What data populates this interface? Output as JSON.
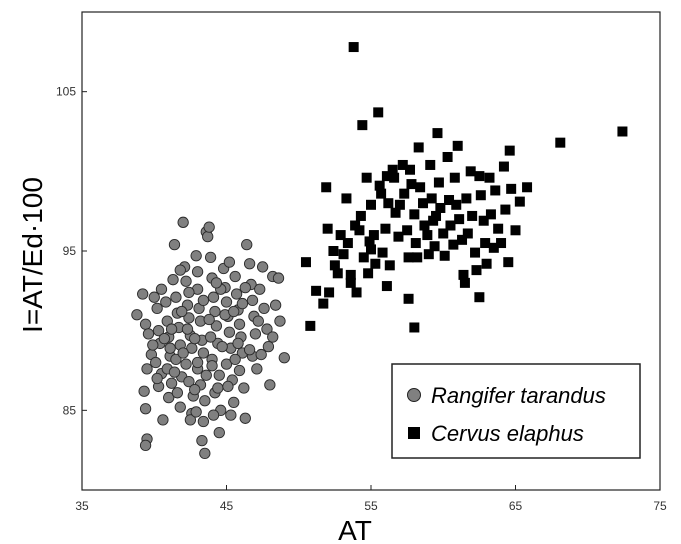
{
  "chart_data": {
    "type": "scatter",
    "xlabel": "AT",
    "ylabel": "I=AT/Ed·100",
    "xlim": [
      35,
      75
    ],
    "ylim": [
      80,
      110
    ],
    "xticks": [
      "35",
      "45",
      "55",
      "65",
      "75"
    ],
    "yticks": [
      "85",
      "95",
      "105"
    ],
    "grid": false,
    "legend_position": "bottom-right",
    "series": [
      {
        "name": "Rangifer tarandus",
        "marker": "circle",
        "color": "#808080",
        "points": [
          [
            38.8,
            91.0
          ],
          [
            39.2,
            92.3
          ],
          [
            39.4,
            90.4
          ],
          [
            39.6,
            89.8
          ],
          [
            39.8,
            88.5
          ],
          [
            39.5,
            87.6
          ],
          [
            39.3,
            86.2
          ],
          [
            39.4,
            85.1
          ],
          [
            39.5,
            83.2
          ],
          [
            39.4,
            82.8
          ],
          [
            40.0,
            92.1
          ],
          [
            40.2,
            91.4
          ],
          [
            40.3,
            90.0
          ],
          [
            40.4,
            89.2
          ],
          [
            40.1,
            88.0
          ],
          [
            40.5,
            87.3
          ],
          [
            40.3,
            86.5
          ],
          [
            40.6,
            84.4
          ],
          [
            40.5,
            92.6
          ],
          [
            40.8,
            91.8
          ],
          [
            40.9,
            90.6
          ],
          [
            41.0,
            89.6
          ],
          [
            41.1,
            88.4
          ],
          [
            40.9,
            87.6
          ],
          [
            41.2,
            86.7
          ],
          [
            41.0,
            85.8
          ],
          [
            41.3,
            93.2
          ],
          [
            41.4,
            95.4
          ],
          [
            41.5,
            92.1
          ],
          [
            41.6,
            91.1
          ],
          [
            41.7,
            90.2
          ],
          [
            41.8,
            89.1
          ],
          [
            41.5,
            88.2
          ],
          [
            41.9,
            87.1
          ],
          [
            41.6,
            86.1
          ],
          [
            41.8,
            85.2
          ],
          [
            42.0,
            96.8
          ],
          [
            42.1,
            94.0
          ],
          [
            42.2,
            93.1
          ],
          [
            42.3,
            91.6
          ],
          [
            42.4,
            90.8
          ],
          [
            42.5,
            89.7
          ],
          [
            42.6,
            88.9
          ],
          [
            42.2,
            87.9
          ],
          [
            42.4,
            86.8
          ],
          [
            42.7,
            85.9
          ],
          [
            42.6,
            84.8
          ],
          [
            42.5,
            84.4
          ],
          [
            42.9,
            94.7
          ],
          [
            43.0,
            92.6
          ],
          [
            43.1,
            91.4
          ],
          [
            43.2,
            90.6
          ],
          [
            43.3,
            89.4
          ],
          [
            43.4,
            88.6
          ],
          [
            43.0,
            87.6
          ],
          [
            43.2,
            86.6
          ],
          [
            43.5,
            85.6
          ],
          [
            43.4,
            84.3
          ],
          [
            43.3,
            83.1
          ],
          [
            43.5,
            82.3
          ],
          [
            43.6,
            96.2
          ],
          [
            43.7,
            95.9
          ],
          [
            43.8,
            96.5
          ],
          [
            43.9,
            94.6
          ],
          [
            44.0,
            93.3
          ],
          [
            44.1,
            92.1
          ],
          [
            44.2,
            91.2
          ],
          [
            44.3,
            90.3
          ],
          [
            44.4,
            89.2
          ],
          [
            44.0,
            88.2
          ],
          [
            44.5,
            87.2
          ],
          [
            44.2,
            86.1
          ],
          [
            44.6,
            85.0
          ],
          [
            44.1,
            84.7
          ],
          [
            44.8,
            93.9
          ],
          [
            44.9,
            92.7
          ],
          [
            45.0,
            91.8
          ],
          [
            45.1,
            90.9
          ],
          [
            45.2,
            89.9
          ],
          [
            45.3,
            88.9
          ],
          [
            45.0,
            87.9
          ],
          [
            45.4,
            86.9
          ],
          [
            45.5,
            85.5
          ],
          [
            45.3,
            84.7
          ],
          [
            45.6,
            93.4
          ],
          [
            45.7,
            92.3
          ],
          [
            45.8,
            91.3
          ],
          [
            45.9,
            90.4
          ],
          [
            46.0,
            89.6
          ],
          [
            46.1,
            88.6
          ],
          [
            45.9,
            87.5
          ],
          [
            46.2,
            86.4
          ],
          [
            46.3,
            84.5
          ],
          [
            46.4,
            95.4
          ],
          [
            46.6,
            94.2
          ],
          [
            46.7,
            92.9
          ],
          [
            46.8,
            91.9
          ],
          [
            46.9,
            90.9
          ],
          [
            47.0,
            89.8
          ],
          [
            46.8,
            88.4
          ],
          [
            47.1,
            87.6
          ],
          [
            47.3,
            92.6
          ],
          [
            47.5,
            94.0
          ],
          [
            47.6,
            91.4
          ],
          [
            47.8,
            90.1
          ],
          [
            47.9,
            89.0
          ],
          [
            48.0,
            86.6
          ],
          [
            48.2,
            93.4
          ],
          [
            48.4,
            91.6
          ],
          [
            48.6,
            93.3
          ],
          [
            48.7,
            90.6
          ],
          [
            49.0,
            88.3
          ],
          [
            41.2,
            90.1
          ],
          [
            42.8,
            89.5
          ],
          [
            43.8,
            90.7
          ],
          [
            44.7,
            89.0
          ],
          [
            45.6,
            88.2
          ],
          [
            42.0,
            88.6
          ],
          [
            43.6,
            87.2
          ],
          [
            44.4,
            86.4
          ],
          [
            45.1,
            86.5
          ],
          [
            41.4,
            87.4
          ],
          [
            40.7,
            89.5
          ],
          [
            42.4,
            92.4
          ],
          [
            44.6,
            92.6
          ],
          [
            46.3,
            92.7
          ],
          [
            47.2,
            90.6
          ],
          [
            43.0,
            93.7
          ],
          [
            45.2,
            94.3
          ],
          [
            41.9,
            91.2
          ],
          [
            44.0,
            87.8
          ],
          [
            45.8,
            89.2
          ],
          [
            42.8,
            86.3
          ],
          [
            43.4,
            91.9
          ],
          [
            46.6,
            88.8
          ],
          [
            40.2,
            87.0
          ],
          [
            41.8,
            93.8
          ],
          [
            44.9,
            91.0
          ],
          [
            43.0,
            88.0
          ],
          [
            42.3,
            90.1
          ],
          [
            47.4,
            88.5
          ],
          [
            45.5,
            91.2
          ],
          [
            44.3,
            93.0
          ],
          [
            41.1,
            88.9
          ],
          [
            42.9,
            84.9
          ],
          [
            46.1,
            91.7
          ],
          [
            43.9,
            89.6
          ],
          [
            48.2,
            89.6
          ],
          [
            39.9,
            89.1
          ],
          [
            44.5,
            83.6
          ]
        ]
      },
      {
        "name": "Cervus elaphus",
        "marker": "square",
        "color": "#000000",
        "points": [
          [
            50.5,
            94.3
          ],
          [
            50.8,
            90.3
          ],
          [
            51.2,
            92.5
          ],
          [
            51.7,
            91.7
          ],
          [
            51.9,
            99.0
          ],
          [
            52.0,
            96.4
          ],
          [
            52.1,
            92.4
          ],
          [
            52.4,
            95.0
          ],
          [
            52.5,
            94.1
          ],
          [
            52.7,
            93.6
          ],
          [
            52.9,
            96.0
          ],
          [
            53.1,
            94.8
          ],
          [
            53.3,
            98.3
          ],
          [
            53.4,
            95.5
          ],
          [
            53.6,
            93.5
          ],
          [
            53.8,
            107.8
          ],
          [
            53.9,
            96.6
          ],
          [
            54.0,
            92.4
          ],
          [
            54.2,
            96.3
          ],
          [
            54.3,
            97.2
          ],
          [
            54.4,
            102.9
          ],
          [
            54.5,
            94.6
          ],
          [
            54.7,
            99.6
          ],
          [
            54.8,
            93.6
          ],
          [
            54.9,
            95.6
          ],
          [
            55.0,
            97.9
          ],
          [
            55.2,
            96.0
          ],
          [
            55.3,
            94.2
          ],
          [
            55.5,
            103.7
          ],
          [
            55.6,
            99.1
          ],
          [
            55.7,
            98.6
          ],
          [
            55.8,
            94.9
          ],
          [
            56.0,
            96.4
          ],
          [
            56.1,
            99.7
          ],
          [
            56.2,
            98.0
          ],
          [
            56.3,
            94.1
          ],
          [
            56.5,
            100.1
          ],
          [
            56.6,
            99.6
          ],
          [
            56.7,
            97.4
          ],
          [
            56.9,
            95.9
          ],
          [
            57.0,
            97.9
          ],
          [
            57.2,
            100.4
          ],
          [
            57.3,
            98.6
          ],
          [
            57.5,
            96.3
          ],
          [
            57.6,
            94.6
          ],
          [
            57.7,
            100.1
          ],
          [
            57.8,
            99.2
          ],
          [
            58.0,
            97.3
          ],
          [
            58.1,
            95.5
          ],
          [
            58.2,
            94.6
          ],
          [
            58.3,
            101.5
          ],
          [
            58.4,
            99.0
          ],
          [
            58.6,
            98.0
          ],
          [
            58.7,
            96.6
          ],
          [
            58.9,
            96.0
          ],
          [
            59.0,
            94.8
          ],
          [
            59.1,
            100.4
          ],
          [
            59.2,
            98.3
          ],
          [
            59.3,
            96.9
          ],
          [
            59.4,
            95.3
          ],
          [
            59.6,
            102.4
          ],
          [
            59.7,
            99.3
          ],
          [
            59.8,
            97.7
          ],
          [
            60.0,
            96.1
          ],
          [
            60.1,
            94.7
          ],
          [
            60.3,
            100.9
          ],
          [
            60.4,
            98.2
          ],
          [
            60.5,
            96.6
          ],
          [
            60.7,
            95.4
          ],
          [
            60.8,
            99.6
          ],
          [
            61.0,
            101.6
          ],
          [
            61.1,
            97.0
          ],
          [
            61.3,
            95.7
          ],
          [
            61.4,
            93.5
          ],
          [
            61.6,
            98.3
          ],
          [
            61.7,
            96.1
          ],
          [
            61.9,
            100.0
          ],
          [
            62.0,
            97.2
          ],
          [
            62.2,
            94.9
          ],
          [
            62.3,
            93.8
          ],
          [
            62.5,
            99.7
          ],
          [
            62.6,
            98.5
          ],
          [
            62.8,
            96.9
          ],
          [
            62.9,
            95.5
          ],
          [
            63.0,
            94.2
          ],
          [
            63.2,
            99.6
          ],
          [
            63.3,
            97.3
          ],
          [
            63.5,
            95.2
          ],
          [
            63.6,
            98.8
          ],
          [
            63.8,
            96.4
          ],
          [
            64.0,
            95.5
          ],
          [
            64.2,
            100.3
          ],
          [
            64.3,
            97.6
          ],
          [
            64.5,
            94.3
          ],
          [
            64.6,
            101.3
          ],
          [
            64.7,
            98.9
          ],
          [
            65.0,
            96.3
          ],
          [
            65.3,
            98.1
          ],
          [
            65.8,
            99.0
          ],
          [
            68.1,
            101.8
          ],
          [
            72.4,
            102.5
          ],
          [
            57.6,
            92.0
          ],
          [
            58.0,
            90.2
          ],
          [
            62.5,
            92.1
          ],
          [
            61.5,
            93.0
          ],
          [
            56.1,
            92.8
          ],
          [
            55.0,
            95.1
          ],
          [
            53.6,
            93.0
          ],
          [
            59.5,
            97.2
          ],
          [
            60.9,
            97.9
          ]
        ]
      }
    ]
  }
}
